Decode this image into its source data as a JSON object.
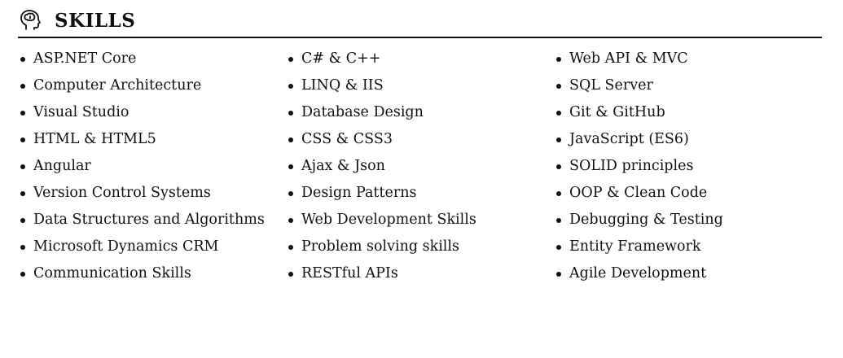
{
  "section": {
    "icon": "head-brain-icon",
    "title": "SKILLS"
  },
  "columns": [
    [
      "ASP.NET Core",
      "Computer Architecture",
      "Visual Studio",
      "HTML & HTML5",
      "Angular",
      "Version Control Systems",
      "Data Structures and Algorithms",
      "Microsoft Dynamics CRM",
      "Communication Skills"
    ],
    [
      "C# & C++",
      "LINQ & IIS",
      "Database Design",
      "CSS & CSS3",
      "Ajax & Json",
      "Design Patterns",
      "Web Development Skills",
      "Problem solving skills",
      "RESTful APIs"
    ],
    [
      "Web API & MVC",
      "SQL Server",
      "Git & GitHub",
      "JavaScript (ES6)",
      "SOLID principles",
      "OOP & Clean Code",
      "Debugging & Testing",
      "Entity Framework",
      "Agile Development"
    ]
  ]
}
